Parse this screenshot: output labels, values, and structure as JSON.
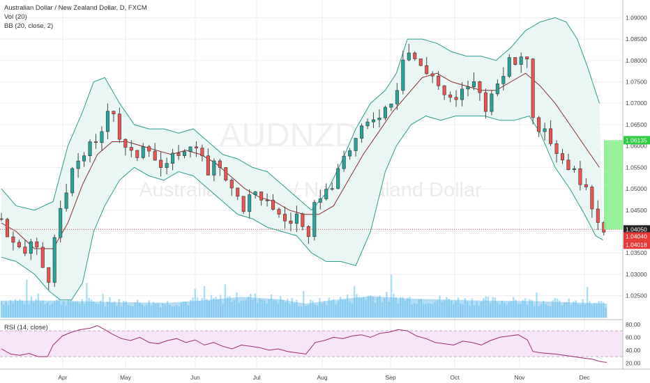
{
  "header": {
    "symbol_line": "Australian Dollar / New Zealand Dollar, D, FXCM",
    "vol_line": "Vol (20)",
    "bb_line": "BB (20, close, 2)",
    "rsi_line": "RSI (14, close)"
  },
  "watermark": {
    "ticker": "AUDNZD, D",
    "name": "Australian Dollar / New Zealand Dollar"
  },
  "colors": {
    "up": "#26a69a",
    "down": "#ef5350",
    "bb_band": "#2a9d8f",
    "bb_basis": "#8b2c2c",
    "bb_fill": "#e9f6f4",
    "volume": "#8fd3f4",
    "vol_ma": "#5bb5e6",
    "rsi_line": "#9c2a6f",
    "rsi_fill": "#f2dcf5",
    "price_line": "#c94b4b",
    "projection": "#86ef86"
  },
  "chart_data": {
    "type": "candlestick",
    "instrument": "AUDNZD",
    "timeframe": "D",
    "x_labels": [
      "Apr",
      "May",
      "Jun",
      "Jul",
      "Aug",
      "Sep",
      "Oct",
      "Nov",
      "Dec"
    ],
    "price_ticks": [
      "1.09000",
      "1.08500",
      "1.08000",
      "1.07500",
      "1.07000",
      "1.06500",
      "1.06000",
      "1.05500",
      "1.05000",
      "1.04500",
      "1.04000",
      "1.03500",
      "1.03000",
      "1.02500"
    ],
    "ylim": [
      1.0225,
      1.0925
    ],
    "last_price": "1.04050",
    "price_tags": [
      {
        "label": "1.06135",
        "value": 1.06135,
        "color": "#2ecc40"
      },
      {
        "label": "1.04050",
        "value": 1.0405,
        "color": "#222222"
      },
      {
        "label": "1.04040",
        "value": 1.0404,
        "color": "#e53935"
      },
      {
        "label": "1.04018",
        "value": 1.04018,
        "color": "#e53935"
      }
    ],
    "rsi_ticks": [
      "80.00",
      "60.00",
      "40.00",
      "20.00"
    ],
    "rsi_levels": [
      70,
      30
    ],
    "rsi_ylim": [
      15,
      82
    ],
    "close_series": [
      {
        "x": 0,
        "y": 1.043
      },
      {
        "x": 4,
        "y": 1.038
      },
      {
        "x": 8,
        "y": 1.036
      },
      {
        "x": 12,
        "y": 1.034
      },
      {
        "x": 15,
        "y": 1.038
      },
      {
        "x": 19,
        "y": 1.036
      },
      {
        "x": 23,
        "y": 1.031
      },
      {
        "x": 26,
        "y": 1.029
      },
      {
        "x": 29,
        "y": 1.038
      },
      {
        "x": 32,
        "y": 1.045
      },
      {
        "x": 36,
        "y": 1.05
      },
      {
        "x": 40,
        "y": 1.056
      },
      {
        "x": 44,
        "y": 1.058
      },
      {
        "x": 48,
        "y": 1.06
      },
      {
        "x": 52,
        "y": 1.06
      },
      {
        "x": 56,
        "y": 1.066
      },
      {
        "x": 58,
        "y": 1.07
      },
      {
        "x": 61,
        "y": 1.068
      },
      {
        "x": 65,
        "y": 1.06
      },
      {
        "x": 70,
        "y": 1.058
      },
      {
        "x": 74,
        "y": 1.058
      },
      {
        "x": 78,
        "y": 1.062
      },
      {
        "x": 82,
        "y": 1.058
      },
      {
        "x": 86,
        "y": 1.055
      },
      {
        "x": 90,
        "y": 1.055
      },
      {
        "x": 95,
        "y": 1.059
      },
      {
        "x": 100,
        "y": 1.058
      },
      {
        "x": 104,
        "y": 1.062
      },
      {
        "x": 108,
        "y": 1.058
      },
      {
        "x": 112,
        "y": 1.053
      },
      {
        "x": 116,
        "y": 1.056
      },
      {
        "x": 120,
        "y": 1.055
      },
      {
        "x": 124,
        "y": 1.05
      },
      {
        "x": 128,
        "y": 1.048
      },
      {
        "x": 132,
        "y": 1.045
      },
      {
        "x": 136,
        "y": 1.05
      },
      {
        "x": 140,
        "y": 1.046
      },
      {
        "x": 144,
        "y": 1.048
      },
      {
        "x": 148,
        "y": 1.045
      },
      {
        "x": 152,
        "y": 1.043
      },
      {
        "x": 156,
        "y": 1.042
      },
      {
        "x": 160,
        "y": 1.044
      },
      {
        "x": 164,
        "y": 1.04
      },
      {
        "x": 168,
        "y": 1.036
      },
      {
        "x": 170,
        "y": 1.048
      },
      {
        "x": 174,
        "y": 1.049
      },
      {
        "x": 178,
        "y": 1.05
      },
      {
        "x": 182,
        "y": 1.053
      },
      {
        "x": 186,
        "y": 1.058
      },
      {
        "x": 190,
        "y": 1.06
      },
      {
        "x": 194,
        "y": 1.063
      },
      {
        "x": 198,
        "y": 1.065
      },
      {
        "x": 202,
        "y": 1.067
      },
      {
        "x": 206,
        "y": 1.068
      },
      {
        "x": 210,
        "y": 1.07
      },
      {
        "x": 214,
        "y": 1.073
      },
      {
        "x": 218,
        "y": 1.082
      },
      {
        "x": 222,
        "y": 1.082
      },
      {
        "x": 226,
        "y": 1.079
      },
      {
        "x": 230,
        "y": 1.077
      },
      {
        "x": 234,
        "y": 1.077
      },
      {
        "x": 238,
        "y": 1.073
      },
      {
        "x": 242,
        "y": 1.071
      },
      {
        "x": 246,
        "y": 1.07
      },
      {
        "x": 250,
        "y": 1.073
      },
      {
        "x": 254,
        "y": 1.075
      },
      {
        "x": 258,
        "y": 1.074
      },
      {
        "x": 262,
        "y": 1.069
      },
      {
        "x": 266,
        "y": 1.072
      },
      {
        "x": 270,
        "y": 1.074
      },
      {
        "x": 274,
        "y": 1.08
      },
      {
        "x": 278,
        "y": 1.079
      },
      {
        "x": 282,
        "y": 1.082
      },
      {
        "x": 285,
        "y": 1.08
      },
      {
        "x": 287,
        "y": 1.069
      },
      {
        "x": 290,
        "y": 1.065
      },
      {
        "x": 294,
        "y": 1.063
      },
      {
        "x": 298,
        "y": 1.061
      },
      {
        "x": 302,
        "y": 1.058
      },
      {
        "x": 306,
        "y": 1.056
      },
      {
        "x": 310,
        "y": 1.054
      },
      {
        "x": 314,
        "y": 1.052
      },
      {
        "x": 318,
        "y": 1.048
      },
      {
        "x": 322,
        "y": 1.044
      },
      {
        "x": 326,
        "y": 1.041
      },
      {
        "x": 328,
        "y": 1.0405
      }
    ],
    "bb_upper": [
      {
        "x": 0,
        "y": 1.05
      },
      {
        "x": 8,
        "y": 1.046
      },
      {
        "x": 18,
        "y": 1.045
      },
      {
        "x": 28,
        "y": 1.047
      },
      {
        "x": 36,
        "y": 1.06
      },
      {
        "x": 44,
        "y": 1.068
      },
      {
        "x": 50,
        "y": 1.075
      },
      {
        "x": 56,
        "y": 1.076
      },
      {
        "x": 64,
        "y": 1.07
      },
      {
        "x": 72,
        "y": 1.065
      },
      {
        "x": 80,
        "y": 1.064
      },
      {
        "x": 88,
        "y": 1.064
      },
      {
        "x": 96,
        "y": 1.063
      },
      {
        "x": 104,
        "y": 1.064
      },
      {
        "x": 112,
        "y": 1.061
      },
      {
        "x": 120,
        "y": 1.058
      },
      {
        "x": 128,
        "y": 1.057
      },
      {
        "x": 136,
        "y": 1.055
      },
      {
        "x": 144,
        "y": 1.054
      },
      {
        "x": 152,
        "y": 1.051
      },
      {
        "x": 160,
        "y": 1.048
      },
      {
        "x": 168,
        "y": 1.045
      },
      {
        "x": 176,
        "y": 1.049
      },
      {
        "x": 184,
        "y": 1.056
      },
      {
        "x": 192,
        "y": 1.064
      },
      {
        "x": 200,
        "y": 1.07
      },
      {
        "x": 208,
        "y": 1.073
      },
      {
        "x": 214,
        "y": 1.077
      },
      {
        "x": 220,
        "y": 1.085
      },
      {
        "x": 228,
        "y": 1.085
      },
      {
        "x": 236,
        "y": 1.084
      },
      {
        "x": 244,
        "y": 1.082
      },
      {
        "x": 252,
        "y": 1.081
      },
      {
        "x": 260,
        "y": 1.081
      },
      {
        "x": 268,
        "y": 1.08
      },
      {
        "x": 276,
        "y": 1.083
      },
      {
        "x": 284,
        "y": 1.087
      },
      {
        "x": 292,
        "y": 1.089
      },
      {
        "x": 300,
        "y": 1.09
      },
      {
        "x": 306,
        "y": 1.089
      },
      {
        "x": 312,
        "y": 1.085
      },
      {
        "x": 318,
        "y": 1.078
      },
      {
        "x": 324,
        "y": 1.07
      }
    ],
    "bb_basis": [
      {
        "x": 0,
        "y": 1.042
      },
      {
        "x": 8,
        "y": 1.04
      },
      {
        "x": 18,
        "y": 1.036
      },
      {
        "x": 28,
        "y": 1.036
      },
      {
        "x": 36,
        "y": 1.042
      },
      {
        "x": 44,
        "y": 1.051
      },
      {
        "x": 52,
        "y": 1.058
      },
      {
        "x": 60,
        "y": 1.061
      },
      {
        "x": 68,
        "y": 1.061
      },
      {
        "x": 76,
        "y": 1.06
      },
      {
        "x": 84,
        "y": 1.059
      },
      {
        "x": 92,
        "y": 1.058
      },
      {
        "x": 100,
        "y": 1.059
      },
      {
        "x": 108,
        "y": 1.058
      },
      {
        "x": 116,
        "y": 1.056
      },
      {
        "x": 124,
        "y": 1.053
      },
      {
        "x": 132,
        "y": 1.05
      },
      {
        "x": 140,
        "y": 1.048
      },
      {
        "x": 148,
        "y": 1.047
      },
      {
        "x": 156,
        "y": 1.045
      },
      {
        "x": 164,
        "y": 1.044
      },
      {
        "x": 172,
        "y": 1.044
      },
      {
        "x": 180,
        "y": 1.046
      },
      {
        "x": 188,
        "y": 1.052
      },
      {
        "x": 196,
        "y": 1.058
      },
      {
        "x": 204,
        "y": 1.063
      },
      {
        "x": 212,
        "y": 1.068
      },
      {
        "x": 220,
        "y": 1.072
      },
      {
        "x": 228,
        "y": 1.076
      },
      {
        "x": 236,
        "y": 1.077
      },
      {
        "x": 244,
        "y": 1.075
      },
      {
        "x": 252,
        "y": 1.074
      },
      {
        "x": 260,
        "y": 1.073
      },
      {
        "x": 268,
        "y": 1.073
      },
      {
        "x": 276,
        "y": 1.075
      },
      {
        "x": 284,
        "y": 1.077
      },
      {
        "x": 292,
        "y": 1.074
      },
      {
        "x": 300,
        "y": 1.07
      },
      {
        "x": 308,
        "y": 1.065
      },
      {
        "x": 316,
        "y": 1.06
      },
      {
        "x": 324,
        "y": 1.055
      }
    ],
    "bb_lower": [
      {
        "x": 0,
        "y": 1.034
      },
      {
        "x": 8,
        "y": 1.033
      },
      {
        "x": 18,
        "y": 1.03
      },
      {
        "x": 26,
        "y": 1.026
      },
      {
        "x": 32,
        "y": 1.024
      },
      {
        "x": 38,
        "y": 1.024
      },
      {
        "x": 44,
        "y": 1.028
      },
      {
        "x": 50,
        "y": 1.04
      },
      {
        "x": 56,
        "y": 1.046
      },
      {
        "x": 64,
        "y": 1.052
      },
      {
        "x": 72,
        "y": 1.055
      },
      {
        "x": 80,
        "y": 1.053
      },
      {
        "x": 88,
        "y": 1.052
      },
      {
        "x": 96,
        "y": 1.054
      },
      {
        "x": 104,
        "y": 1.053
      },
      {
        "x": 112,
        "y": 1.05
      },
      {
        "x": 120,
        "y": 1.047
      },
      {
        "x": 128,
        "y": 1.044
      },
      {
        "x": 136,
        "y": 1.043
      },
      {
        "x": 144,
        "y": 1.041
      },
      {
        "x": 152,
        "y": 1.04
      },
      {
        "x": 160,
        "y": 1.039
      },
      {
        "x": 168,
        "y": 1.035
      },
      {
        "x": 176,
        "y": 1.033
      },
      {
        "x": 184,
        "y": 1.033
      },
      {
        "x": 192,
        "y": 1.032
      },
      {
        "x": 200,
        "y": 1.04
      },
      {
        "x": 208,
        "y": 1.054
      },
      {
        "x": 214,
        "y": 1.06
      },
      {
        "x": 222,
        "y": 1.065
      },
      {
        "x": 230,
        "y": 1.067
      },
      {
        "x": 238,
        "y": 1.066
      },
      {
        "x": 246,
        "y": 1.067
      },
      {
        "x": 254,
        "y": 1.067
      },
      {
        "x": 262,
        "y": 1.067
      },
      {
        "x": 270,
        "y": 1.066
      },
      {
        "x": 278,
        "y": 1.066
      },
      {
        "x": 286,
        "y": 1.067
      },
      {
        "x": 292,
        "y": 1.063
      },
      {
        "x": 300,
        "y": 1.055
      },
      {
        "x": 308,
        "y": 1.05
      },
      {
        "x": 316,
        "y": 1.044
      },
      {
        "x": 322,
        "y": 1.039
      },
      {
        "x": 326,
        "y": 1.038
      }
    ],
    "volume_ma": [
      {
        "x": 0,
        "y": 0.55
      },
      {
        "x": 30,
        "y": 0.55
      },
      {
        "x": 60,
        "y": 0.5
      },
      {
        "x": 90,
        "y": 0.48
      },
      {
        "x": 110,
        "y": 0.56
      },
      {
        "x": 130,
        "y": 0.67
      },
      {
        "x": 150,
        "y": 0.6
      },
      {
        "x": 165,
        "y": 0.45
      },
      {
        "x": 180,
        "y": 0.57
      },
      {
        "x": 200,
        "y": 0.7
      },
      {
        "x": 220,
        "y": 0.62
      },
      {
        "x": 240,
        "y": 0.58
      },
      {
        "x": 260,
        "y": 0.55
      },
      {
        "x": 290,
        "y": 0.53
      },
      {
        "x": 328,
        "y": 0.45
      }
    ],
    "rsi": [
      {
        "x": 0,
        "y": 42
      },
      {
        "x": 5,
        "y": 34
      },
      {
        "x": 10,
        "y": 32
      },
      {
        "x": 15,
        "y": 35
      },
      {
        "x": 20,
        "y": 30
      },
      {
        "x": 25,
        "y": 30
      },
      {
        "x": 28,
        "y": 48
      },
      {
        "x": 33,
        "y": 62
      },
      {
        "x": 38,
        "y": 68
      },
      {
        "x": 43,
        "y": 72
      },
      {
        "x": 48,
        "y": 74
      },
      {
        "x": 52,
        "y": 78
      },
      {
        "x": 56,
        "y": 72
      },
      {
        "x": 60,
        "y": 65
      },
      {
        "x": 65,
        "y": 58
      },
      {
        "x": 70,
        "y": 55
      },
      {
        "x": 75,
        "y": 60
      },
      {
        "x": 80,
        "y": 52
      },
      {
        "x": 85,
        "y": 50
      },
      {
        "x": 90,
        "y": 55
      },
      {
        "x": 95,
        "y": 58
      },
      {
        "x": 100,
        "y": 52
      },
      {
        "x": 105,
        "y": 56
      },
      {
        "x": 110,
        "y": 48
      },
      {
        "x": 115,
        "y": 52
      },
      {
        "x": 120,
        "y": 46
      },
      {
        "x": 125,
        "y": 42
      },
      {
        "x": 130,
        "y": 48
      },
      {
        "x": 135,
        "y": 46
      },
      {
        "x": 140,
        "y": 44
      },
      {
        "x": 145,
        "y": 40
      },
      {
        "x": 150,
        "y": 42
      },
      {
        "x": 155,
        "y": 38
      },
      {
        "x": 160,
        "y": 36
      },
      {
        "x": 165,
        "y": 34
      },
      {
        "x": 170,
        "y": 52
      },
      {
        "x": 175,
        "y": 55
      },
      {
        "x": 180,
        "y": 60
      },
      {
        "x": 185,
        "y": 58
      },
      {
        "x": 190,
        "y": 62
      },
      {
        "x": 195,
        "y": 64
      },
      {
        "x": 200,
        "y": 60
      },
      {
        "x": 205,
        "y": 66
      },
      {
        "x": 210,
        "y": 68
      },
      {
        "x": 215,
        "y": 72
      },
      {
        "x": 220,
        "y": 70
      },
      {
        "x": 225,
        "y": 62
      },
      {
        "x": 230,
        "y": 58
      },
      {
        "x": 235,
        "y": 52
      },
      {
        "x": 240,
        "y": 50
      },
      {
        "x": 245,
        "y": 48
      },
      {
        "x": 250,
        "y": 54
      },
      {
        "x": 255,
        "y": 52
      },
      {
        "x": 260,
        "y": 48
      },
      {
        "x": 265,
        "y": 55
      },
      {
        "x": 270,
        "y": 60
      },
      {
        "x": 275,
        "y": 62
      },
      {
        "x": 280,
        "y": 64
      },
      {
        "x": 285,
        "y": 56
      },
      {
        "x": 288,
        "y": 38
      },
      {
        "x": 292,
        "y": 36
      },
      {
        "x": 296,
        "y": 35
      },
      {
        "x": 300,
        "y": 34
      },
      {
        "x": 305,
        "y": 32
      },
      {
        "x": 310,
        "y": 30
      },
      {
        "x": 315,
        "y": 28
      },
      {
        "x": 320,
        "y": 26
      },
      {
        "x": 325,
        "y": 22
      },
      {
        "x": 328,
        "y": 21
      }
    ]
  }
}
